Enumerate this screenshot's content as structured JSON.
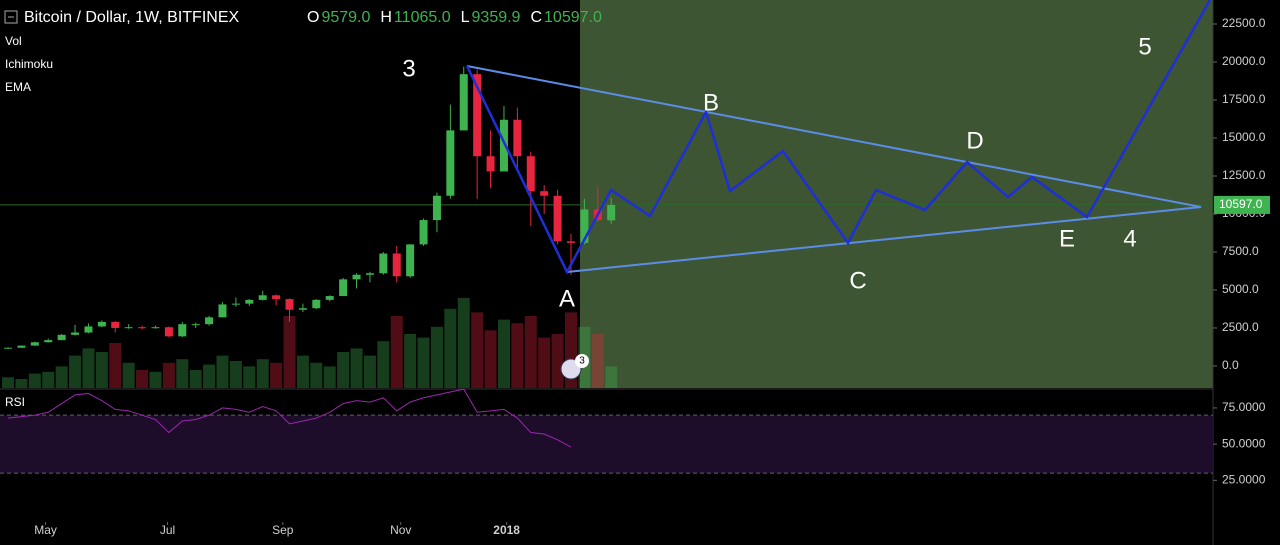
{
  "chart_data": {
    "type": "candlestick",
    "title": "Bitcoin / Dollar, 1W, BITFINEX",
    "header_ohlc": [
      {
        "key": "O",
        "text": "9579.0"
      },
      {
        "key": "H",
        "text": "11065.0"
      },
      {
        "key": "L",
        "text": "9359.9"
      },
      {
        "key": "C",
        "text": "10597.0"
      }
    ],
    "indicators": [
      "Vol",
      "Ichimoku",
      "EMA"
    ],
    "ohlc": [
      [
        1180,
        1230,
        1140,
        1200
      ],
      [
        1200,
        1350,
        1190,
        1340
      ],
      [
        1340,
        1600,
        1320,
        1560
      ],
      [
        1560,
        1800,
        1550,
        1700
      ],
      [
        1700,
        2100,
        1690,
        2050
      ],
      [
        2050,
        2700,
        2000,
        2200
      ],
      [
        2200,
        2800,
        2150,
        2600
      ],
      [
        2600,
        3000,
        2550,
        2900
      ],
      [
        2900,
        2950,
        2200,
        2500
      ],
      [
        2500,
        2750,
        2450,
        2550
      ],
      [
        2550,
        2650,
        2400,
        2500
      ],
      [
        2500,
        2650,
        2450,
        2550
      ],
      [
        2550,
        2600,
        1900,
        1950
      ],
      [
        1950,
        2900,
        1900,
        2750
      ],
      [
        2750,
        2850,
        2500,
        2750
      ],
      [
        2750,
        3300,
        2650,
        3200
      ],
      [
        3200,
        4200,
        3200,
        4050
      ],
      [
        4050,
        4500,
        3900,
        4100
      ],
      [
        4100,
        4400,
        3950,
        4350
      ],
      [
        4350,
        4950,
        4300,
        4650
      ],
      [
        4650,
        4700,
        4000,
        4400
      ],
      [
        4400,
        4450,
        2900,
        3700
      ],
      [
        3700,
        4100,
        3550,
        3800
      ],
      [
        3800,
        4400,
        3750,
        4350
      ],
      [
        4350,
        4650,
        4250,
        4600
      ],
      [
        4600,
        5800,
        4600,
        5700
      ],
      [
        5700,
        6100,
        5100,
        6000
      ],
      [
        6000,
        6200,
        5500,
        6100
      ],
      [
        6100,
        7500,
        6000,
        7400
      ],
      [
        7400,
        7900,
        5500,
        5900
      ],
      [
        5900,
        8000,
        5800,
        8000
      ],
      [
        8000,
        9700,
        7900,
        9600
      ],
      [
        9600,
        11400,
        8800,
        11200
      ],
      [
        11200,
        17200,
        11000,
        15500
      ],
      [
        15500,
        19700,
        15500,
        19200
      ],
      [
        19200,
        19500,
        11000,
        13800
      ],
      [
        13800,
        15500,
        11700,
        12800
      ],
      [
        12800,
        17100,
        12800,
        16200
      ],
      [
        16200,
        17000,
        12800,
        13800
      ],
      [
        13800,
        14100,
        9200,
        11500
      ],
      [
        11500,
        11900,
        10000,
        11200
      ],
      [
        11200,
        11600,
        8000,
        8200
      ],
      [
        8200,
        8700,
        6000,
        8100
      ],
      [
        8100,
        11000,
        8000,
        10300
      ],
      [
        10300,
        11800,
        9500,
        9600
      ],
      [
        9579,
        11065,
        9359.9,
        10597
      ]
    ],
    "up_color": "#3fb34f",
    "down_color": "#e8253f",
    "last_price_label": "10597.0",
    "volume": [
      6,
      5,
      8,
      9,
      12,
      18,
      22,
      20,
      25,
      14,
      10,
      9,
      14,
      16,
      10,
      13,
      18,
      15,
      12,
      16,
      14,
      40,
      18,
      14,
      12,
      20,
      22,
      18,
      26,
      40,
      30,
      28,
      34,
      44,
      50,
      42,
      32,
      38,
      36,
      40,
      28,
      30,
      42,
      34,
      30,
      12
    ],
    "vlim": [
      0,
      100
    ],
    "xlim": [
      -0.6,
      89.9
    ],
    "xticks": [
      {
        "value": 2.8,
        "label": "May"
      },
      {
        "value": 11.9,
        "label": "Jul"
      },
      {
        "value": 20.5,
        "label": "Sep"
      },
      {
        "value": 29.3,
        "label": "Nov"
      },
      {
        "value": 37.2,
        "label": "2018"
      }
    ],
    "ylim": [
      -1450,
      24080
    ],
    "yticks": [
      {
        "value": 0,
        "label": "0.0"
      },
      {
        "value": 2500,
        "label": "2500.0"
      },
      {
        "value": 5000,
        "label": "5000.0"
      },
      {
        "value": 7500,
        "label": "7500.0"
      },
      {
        "value": 10000,
        "label": "10000.0"
      },
      {
        "value": 12500,
        "label": "12500.0"
      },
      {
        "value": 15000,
        "label": "15000.0"
      },
      {
        "value": 17500,
        "label": "17500.0"
      },
      {
        "value": 20000,
        "label": "20000.0"
      },
      {
        "value": 22500,
        "label": "22500.0"
      }
    ],
    "rsi_label": "RSI",
    "rsi": [
      68,
      69,
      70,
      72,
      78,
      84,
      85,
      80,
      74,
      73,
      70,
      67,
      58,
      66,
      67,
      70,
      75,
      74,
      72,
      76,
      73,
      64,
      66,
      68,
      72,
      78,
      80,
      79,
      82,
      73,
      79,
      82,
      84,
      86,
      88,
      72,
      73,
      74,
      68,
      58,
      57,
      53,
      48,
      null,
      null,
      null
    ],
    "rsi_color": "#9c27b0",
    "rlim": [
      -1.7,
      86
    ],
    "rsi_band": [
      30,
      70
    ],
    "rticks": [
      {
        "value": 25,
        "label": "25.0000"
      },
      {
        "value": 50,
        "label": "50.0000"
      },
      {
        "value": 75,
        "label": "75.0000"
      }
    ],
    "annotations": [
      "3",
      "A",
      "B",
      "C",
      "D",
      "E",
      "4",
      "5"
    ],
    "badge": "3"
  }
}
